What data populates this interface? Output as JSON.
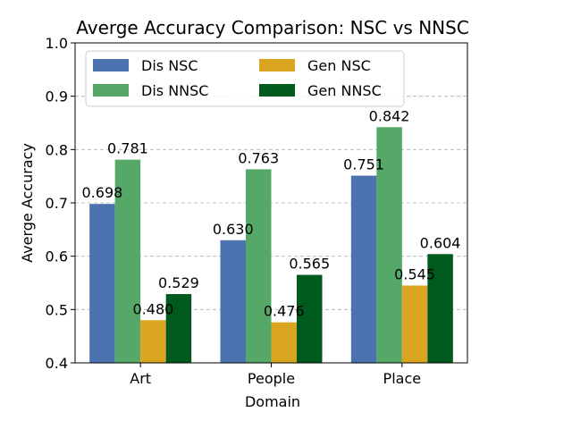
{
  "chart_data": {
    "type": "bar",
    "title": "Averge Accuracy Comparison: NSC vs NNSC",
    "xlabel": "Domain",
    "ylabel": "Averge Accuracy",
    "categories": [
      "Art",
      "People",
      "Place"
    ],
    "ylim": [
      0.4,
      1.0
    ],
    "yticks": [
      "0.4",
      "0.5",
      "0.6",
      "0.7",
      "0.8",
      "0.9",
      "1.0"
    ],
    "grid": "y-dashed",
    "legend_placement": "top-left",
    "legend_columns": 2,
    "series": [
      {
        "name": "Dis NSC",
        "color": "#4c72b0",
        "values": [
          0.698,
          0.63,
          0.751
        ],
        "labels": [
          "0.698",
          "0.630",
          "0.751"
        ]
      },
      {
        "name": "Dis NNSC",
        "color": "#55a868",
        "values": [
          0.781,
          0.763,
          0.842
        ],
        "labels": [
          "0.781",
          "0.763",
          "0.842"
        ]
      },
      {
        "name": "Gen NSC",
        "color": "#daa520",
        "values": [
          0.48,
          0.476,
          0.545
        ],
        "labels": [
          "0.480",
          "0.476",
          "0.545"
        ]
      },
      {
        "name": "Gen NNSC",
        "color": "#005a1e",
        "values": [
          0.529,
          0.565,
          0.604
        ],
        "labels": [
          "0.529",
          "0.565",
          "0.604"
        ]
      }
    ]
  }
}
